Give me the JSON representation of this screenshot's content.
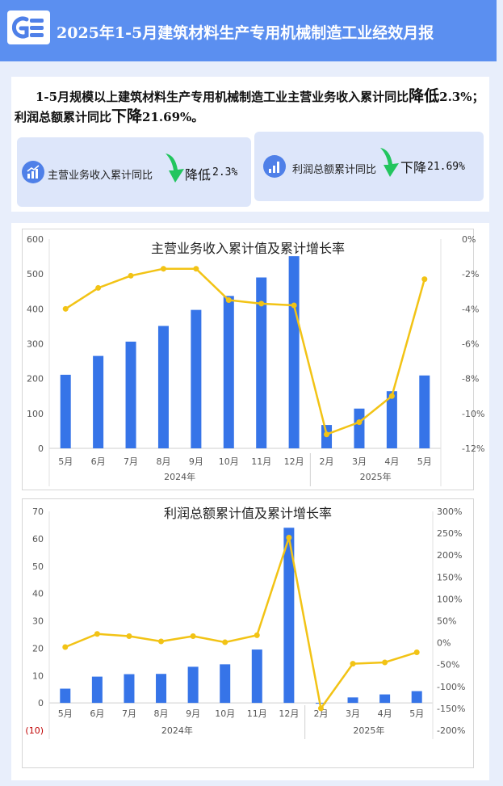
{
  "header": {
    "title": "2025年1-5月建筑材料生产专用机械制造工业经效月报"
  },
  "summary": {
    "p1": "1-5月规模以上建筑材料生产专用机械制造工业主营业务收入累计同比",
    "w1a": "降",
    "w1b": "低",
    "p2": "2.3%；利润总额累计同比",
    "w2": "下降",
    "p3": "21.69%。"
  },
  "stats": [
    {
      "label": "主营业务收入累计同比",
      "direction": "降低",
      "value": "2.3%",
      "icon": "bar-growth-icon",
      "arrow": "down-arrow-icon",
      "arrow_color": "#22c55e"
    },
    {
      "label": "利润总额累计同比",
      "direction": "下降",
      "value": "21.69%",
      "icon": "bar-chart-icon",
      "arrow": "down-arrow-icon",
      "arrow_color": "#22c55e"
    }
  ],
  "colors": {
    "bar": "#3674e8",
    "line": "#f2c315",
    "header": "#5b8ff0",
    "negative_label": "#c00000"
  },
  "chart_data": [
    {
      "type": "bar",
      "title": "主营业务收入累计值及累计增长率",
      "categories": [
        "5月",
        "6月",
        "7月",
        "8月",
        "9月",
        "10月",
        "11月",
        "12月",
        "2月",
        "3月",
        "4月",
        "5月"
      ],
      "groups": [
        {
          "label": "2024年",
          "count": 8
        },
        {
          "label": "2025年",
          "count": 4
        }
      ],
      "series": [
        {
          "type": "bar",
          "axis": "left",
          "values": [
            211,
            265,
            306,
            351,
            397,
            437,
            490,
            551,
            67,
            114,
            164,
            209
          ]
        },
        {
          "type": "line",
          "axis": "right",
          "values": [
            -4.0,
            -2.8,
            -2.1,
            -1.7,
            -1.7,
            -3.5,
            -3.7,
            -3.8,
            -11.2,
            -10.5,
            -9.0,
            -2.3
          ]
        }
      ],
      "ylim_left": [
        0,
        600
      ],
      "yticks_left": [
        "0",
        "100",
        "200",
        "300",
        "400",
        "500",
        "600"
      ],
      "ylim_right": [
        -12,
        0
      ],
      "yticks_right": [
        "-12%",
        "-10%",
        "-8%",
        "-6%",
        "-4%",
        "-2%",
        "0%"
      ],
      "grid": false
    },
    {
      "type": "bar",
      "title": "利润总额累计值及累计增长率",
      "categories": [
        "5月",
        "6月",
        "7月",
        "8月",
        "9月",
        "10月",
        "11月",
        "12月",
        "2月",
        "3月",
        "4月",
        "5月"
      ],
      "groups": [
        {
          "label": "2024年",
          "count": 8
        },
        {
          "label": "2025年",
          "count": 4
        }
      ],
      "series": [
        {
          "type": "bar",
          "axis": "left",
          "values": [
            5.2,
            9.6,
            10.5,
            10.6,
            13.2,
            14.1,
            19.5,
            64.0,
            -0.3,
            2.0,
            3.1,
            4.3
          ]
        },
        {
          "type": "line",
          "axis": "right",
          "values": [
            -10,
            20,
            15,
            3,
            15,
            1,
            17,
            240,
            -150,
            -48,
            -45,
            -22
          ]
        }
      ],
      "ylim_left": [
        -10,
        70
      ],
      "yticks_left": [
        "(10)",
        "0",
        "10",
        "20",
        "30",
        "40",
        "50",
        "60",
        "70"
      ],
      "ylim_right": [
        -200,
        300
      ],
      "yticks_right": [
        "-200%",
        "-150%",
        "-100%",
        "-50%",
        "0%",
        "50%",
        "100%",
        "150%",
        "200%",
        "250%",
        "300%"
      ],
      "grid": false
    }
  ]
}
